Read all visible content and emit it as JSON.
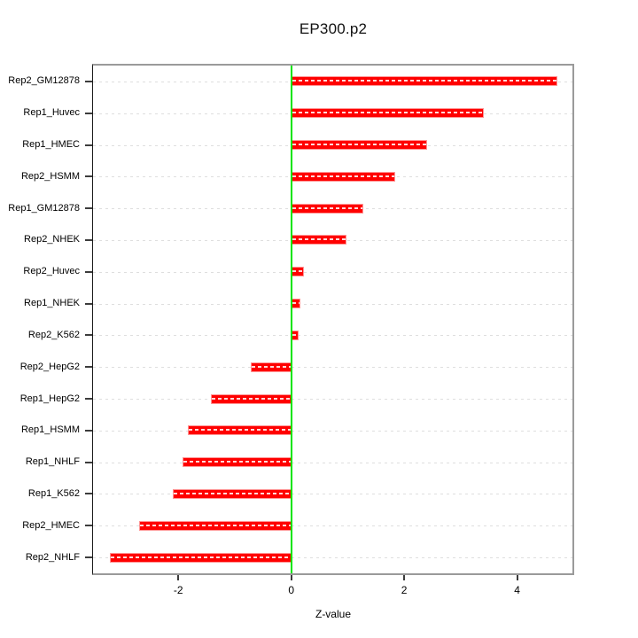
{
  "chart_data": {
    "type": "bar",
    "orientation": "horizontal",
    "title": "EP300.p2",
    "xlabel": "Z-value",
    "ylabel": "",
    "categories": [
      "Rep2_GM12878",
      "Rep1_Huvec",
      "Rep1_HMEC",
      "Rep2_HSMM",
      "Rep1_GM12878",
      "Rep2_NHEK",
      "Rep2_Huvec",
      "Rep1_NHEK",
      "Rep2_K562",
      "Rep2_HepG2",
      "Rep1_HepG2",
      "Rep1_HSMM",
      "Rep1_NHLF",
      "Rep1_K562",
      "Rep2_HMEC",
      "Rep2_NHLF"
    ],
    "values": [
      4.71,
      3.41,
      2.41,
      1.84,
      1.28,
      0.98,
      0.22,
      0.17,
      0.13,
      -0.71,
      -1.42,
      -1.83,
      -1.92,
      -2.09,
      -2.7,
      -3.21
    ],
    "xticks": [
      "-2",
      "0",
      "2",
      "4"
    ],
    "xtick_values": [
      -2,
      0,
      2,
      4
    ],
    "xlim": [
      -3.51,
      4.98
    ],
    "bar_color": "#ff0000",
    "zero_line_color": "#00e400",
    "grid": "dashed-horizontal-per-category",
    "legend": "none"
  }
}
